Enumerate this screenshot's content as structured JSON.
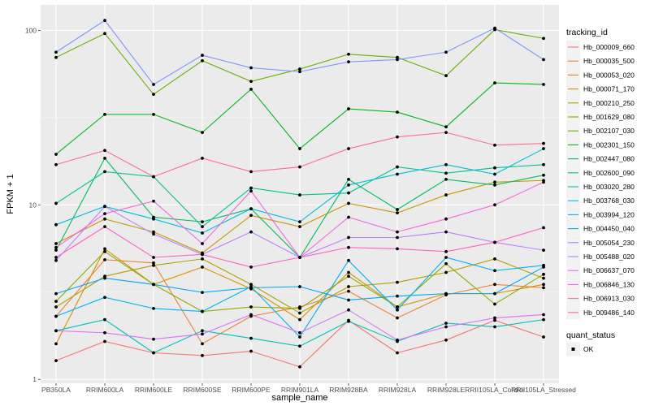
{
  "chart_data": {
    "type": "line",
    "xlabel": "sample_name",
    "ylabel": "FPKM + 1",
    "yscale": "log10",
    "ylim": [
      0.95,
      140
    ],
    "yticks": [
      {
        "value": 1,
        "label": "1"
      },
      {
        "value": 10,
        "label": "10"
      },
      {
        "value": 100,
        "label": "100"
      }
    ],
    "categories": [
      "PB350LA",
      "RRIM600LA",
      "RRIM600LE",
      "RRIM600SE",
      "RRIM600PE",
      "RRIM901LA",
      "RRIM928BA",
      "RRIM928LA",
      "RRIM928LE",
      "RRII105LA_Control",
      "RRII105LA_Stressed"
    ],
    "grid": true,
    "legend": {
      "title": "tracking_id",
      "placement": "right"
    },
    "shape_legend": {
      "title": "quant_status",
      "items": [
        "OK"
      ]
    },
    "series": [
      {
        "name": "Hb_000009_660",
        "color": "#F8766D",
        "values": [
          1.28,
          1.65,
          1.42,
          1.37,
          1.45,
          1.18,
          2.18,
          1.42,
          1.68,
          2.18,
          1.75
        ]
      },
      {
        "name": "Hb_000035_500",
        "color": "#EC8239",
        "values": [
          2.3,
          4.85,
          4.65,
          1.6,
          2.3,
          2.6,
          3.2,
          2.25,
          3.05,
          3.5,
          3.35
        ]
      },
      {
        "name": "Hb_000053_020",
        "color": "#DB8E00",
        "values": [
          1.6,
          5.6,
          3.5,
          4.4,
          3.3,
          2.2,
          4.1,
          2.6,
          3.1,
          3.1,
          3.5
        ]
      },
      {
        "name": "Hb_000071_170",
        "color": "#C79800",
        "values": [
          6.0,
          8.3,
          7.0,
          5.3,
          8.7,
          7.5,
          10.2,
          9.0,
          11.4,
          13.5,
          13.8
        ]
      },
      {
        "name": "Hb_000210_250",
        "color": "#AEA200",
        "values": [
          2.6,
          3.9,
          4.5,
          4.9,
          3.5,
          2.4,
          3.4,
          3.6,
          4.1,
          4.9,
          3.8
        ]
      },
      {
        "name": "Hb_001629_080",
        "color": "#8FAA00",
        "values": [
          2.8,
          5.4,
          3.5,
          2.45,
          2.6,
          2.55,
          3.9,
          2.6,
          4.6,
          2.7,
          4.0
        ]
      },
      {
        "name": "Hb_002107_030",
        "color": "#64B200",
        "values": [
          70,
          96,
          43,
          67,
          51,
          60,
          73,
          70,
          55,
          101,
          90
        ]
      },
      {
        "name": "Hb_002301_150",
        "color": "#00B81B",
        "values": [
          19.5,
          33,
          33,
          26,
          46,
          21,
          35.5,
          34,
          28,
          50,
          49
        ]
      },
      {
        "name": "Hb_002447_080",
        "color": "#00BD5C",
        "values": [
          5.5,
          18.5,
          8.5,
          8.0,
          9.5,
          5.0,
          14.0,
          9.4,
          14.0,
          13.0,
          14.8
        ]
      },
      {
        "name": "Hb_002600_090",
        "color": "#00C08E",
        "values": [
          10.2,
          15.5,
          14.5,
          7.5,
          12.5,
          11.4,
          11.7,
          16.5,
          15.2,
          16.3,
          17.0
        ]
      },
      {
        "name": "Hb_003020_280",
        "color": "#00C1B7",
        "values": [
          1.9,
          2.2,
          1.42,
          1.9,
          1.72,
          1.55,
          2.15,
          1.65,
          2.1,
          2.0,
          2.2
        ]
      },
      {
        "name": "Hb_003768_030",
        "color": "#00BDDC",
        "values": [
          7.7,
          9.8,
          8.3,
          6.9,
          9.5,
          8.0,
          13.0,
          15.0,
          17.0,
          15.0,
          21.0
        ]
      },
      {
        "name": "Hb_003994_120",
        "color": "#00B2F3",
        "values": [
          2.3,
          2.95,
          2.55,
          2.45,
          3.4,
          1.75,
          4.8,
          2.5,
          5.0,
          4.2,
          4.5
        ]
      },
      {
        "name": "Hb_004450_040",
        "color": "#00A6FF",
        "values": [
          3.1,
          3.8,
          3.5,
          3.15,
          3.35,
          3.4,
          2.85,
          3.0,
          3.1,
          3.1,
          4.4
        ]
      },
      {
        "name": "Hb_005054_230",
        "color": "#7F96FF",
        "values": [
          75,
          114,
          49,
          72,
          61,
          58,
          66,
          68,
          75,
          103,
          68
        ]
      },
      {
        "name": "Hb_005488_020",
        "color": "#BB81FF",
        "values": [
          4.8,
          9.8,
          6.8,
          5.2,
          7.0,
          5.0,
          6.5,
          6.5,
          7.0,
          6.1,
          5.5
        ]
      },
      {
        "name": "Hb_006637_070",
        "color": "#E06FF7",
        "values": [
          1.9,
          1.85,
          1.7,
          1.82,
          2.35,
          1.85,
          2.5,
          1.68,
          2.0,
          2.25,
          2.35
        ]
      },
      {
        "name": "Hb_006846_130",
        "color": "#F465E2",
        "values": [
          5.7,
          8.9,
          10.5,
          6.0,
          12.0,
          5.0,
          8.5,
          7.0,
          8.3,
          10.0,
          13.5
        ]
      },
      {
        "name": "Hb_006913_030",
        "color": "#FF62C1",
        "values": [
          5.0,
          7.5,
          5.0,
          5.2,
          4.4,
          5.0,
          5.7,
          5.6,
          5.4,
          6.1,
          7.4
        ]
      },
      {
        "name": "Hb_009486_140",
        "color": "#FF6A98",
        "values": [
          17.0,
          20.5,
          14.5,
          18.5,
          15.5,
          16.5,
          21.0,
          24.5,
          26.0,
          22.0,
          22.5
        ]
      }
    ]
  }
}
